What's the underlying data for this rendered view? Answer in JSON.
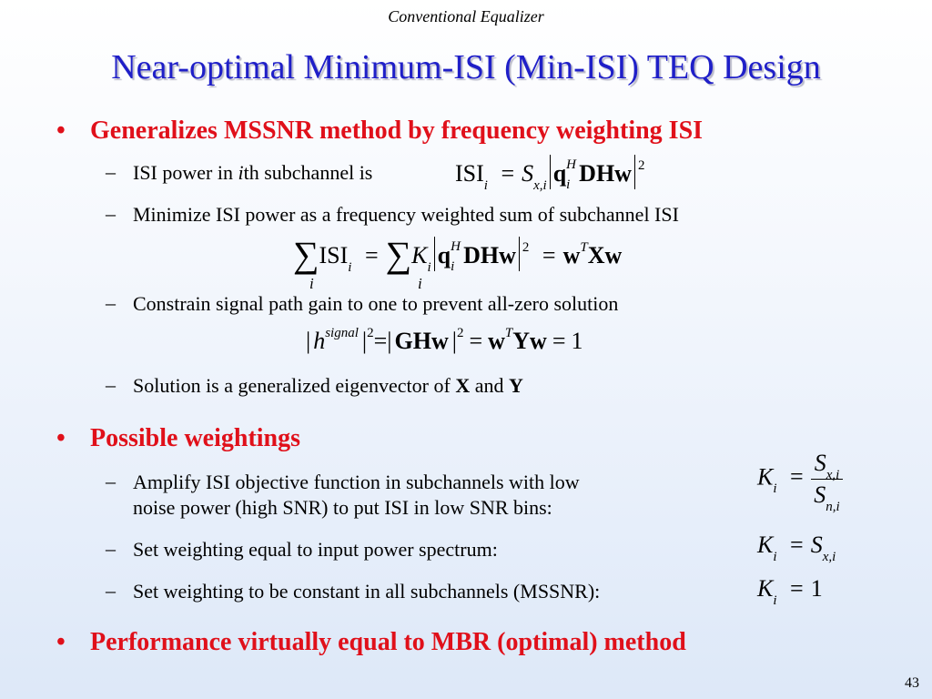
{
  "header": "Conventional Equalizer",
  "title": "Near-optimal Minimum-ISI (Min-ISI) TEQ Design",
  "bullets": {
    "b1": "Generalizes MSSNR method by frequency weighting ISI",
    "b1_sub1": "ISI power in ",
    "b1_sub1_i": "i",
    "b1_sub1_rest": "th subchannel is",
    "b1_sub2": "Minimize ISI power as a frequency weighted sum of subchannel ISI",
    "b1_sub3": "Constrain signal path gain to one to prevent all-zero solution",
    "b1_sub4_a": "Solution is a generalized eigenvector of ",
    "b1_sub4_X": "X",
    "b1_sub4_and": " and ",
    "b1_sub4_Y": "Y",
    "b2": "Possible weightings",
    "b2_sub1_line1": "Amplify ISI objective function in subchannels with low",
    "b2_sub1_line2": "noise power (high SNR) to put ISI in low SNR bins:",
    "b2_sub2": "Set weighting equal to input power spectrum:",
    "b2_sub3": "Set weighting to be constant in all subchannels (MSSNR):",
    "b3": "Performance virtually equal to MBR (optimal) method"
  },
  "equations": {
    "isi": "ISI",
    "S": "S",
    "K": "K",
    "q": "q",
    "DHw": "DHw",
    "w": "w",
    "Xw": "Xw",
    "h": "h",
    "GHw": "GHw",
    "Yw": "Yw",
    "eq": "=",
    "one": "1",
    "two": "2",
    "sup_H": "H",
    "sup_T": "T",
    "sup_signal": "signal",
    "sub_i": "i",
    "sub_xi": "x,i",
    "sub_ni": "n,i"
  },
  "dash": "–",
  "bullet_char": "•",
  "page_number": "43",
  "colors": {
    "title": "#1f1fc8",
    "bullet_red": "#e0101a"
  }
}
